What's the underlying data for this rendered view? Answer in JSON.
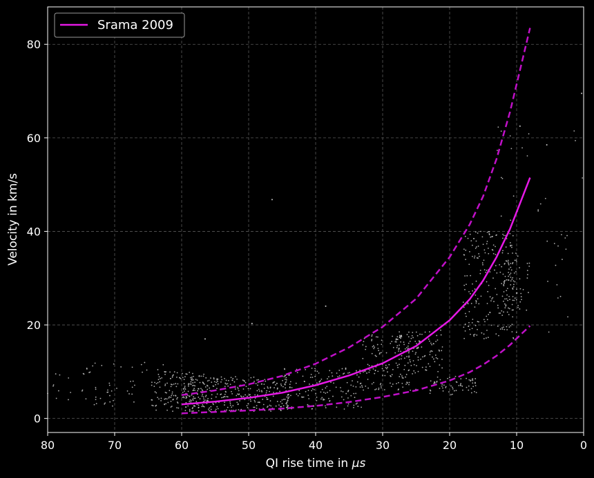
{
  "chart_data": {
    "type": "scatter",
    "title": "",
    "xlabel_prefix": "QI rise time in ",
    "xlabel_unit": "μs",
    "ylabel": "Velocity in km/s",
    "xlim": [
      80,
      0
    ],
    "ylim": [
      -3,
      88
    ],
    "x_inverted": true,
    "xticks": [
      80,
      70,
      60,
      50,
      40,
      30,
      20,
      10,
      0
    ],
    "yticks": [
      0,
      20,
      40,
      60,
      80
    ],
    "grid": true,
    "legend": {
      "position": "top-left",
      "entries": [
        {
          "label": "Srama 2009",
          "color": "#e619e6",
          "style": "solid"
        }
      ]
    },
    "series": [
      {
        "name": "Srama 2009",
        "type": "line",
        "style": "solid",
        "color": "#e619e6",
        "x": [
          60,
          55,
          50,
          45,
          40,
          35,
          30,
          25,
          20,
          17,
          15,
          13,
          11,
          9.5,
          8
        ],
        "y": [
          3.0,
          3.6,
          4.4,
          5.5,
          7.1,
          9.2,
          11.8,
          15.5,
          21.0,
          25.5,
          29.5,
          34.5,
          40.5,
          46.0,
          51.5
        ]
      },
      {
        "type": "line",
        "style": "dashed",
        "color": "#c010c8",
        "x": [
          60,
          55,
          50,
          45,
          40,
          35,
          30,
          25,
          20,
          17,
          15,
          13,
          11,
          9.5,
          8
        ],
        "y": [
          5.0,
          6.0,
          7.3,
          9.1,
          11.7,
          15.2,
          19.6,
          25.6,
          34.5,
          41.5,
          47.5,
          55.5,
          65.5,
          74.5,
          83.5
        ]
      },
      {
        "type": "line",
        "style": "dashed",
        "color": "#c010c8",
        "x": [
          60,
          55,
          50,
          45,
          40,
          35,
          30,
          25,
          20,
          17,
          15,
          13,
          11,
          9.5,
          8
        ],
        "y": [
          1.1,
          1.4,
          1.7,
          2.1,
          2.7,
          3.5,
          4.6,
          6.0,
          8.1,
          9.9,
          11.5,
          13.4,
          15.7,
          17.8,
          19.8
        ]
      }
    ],
    "scatter_color": "#cccccc",
    "scatter_clusters": [
      {
        "x": [
          56,
          64
        ],
        "y": [
          1.5,
          10
        ],
        "n": 120
      },
      {
        "x": [
          44,
          60
        ],
        "y": [
          1.5,
          9
        ],
        "n": 320
      },
      {
        "x": [
          33,
          45
        ],
        "y": [
          2,
          11
        ],
        "n": 170
      },
      {
        "x": [
          62,
          75
        ],
        "y": [
          2.5,
          12
        ],
        "n": 70
      },
      {
        "x": [
          74,
          80
        ],
        "y": [
          4,
          12
        ],
        "n": 10
      },
      {
        "x": [
          25,
          33
        ],
        "y": [
          6,
          18
        ],
        "n": 140
      },
      {
        "x": [
          21,
          28
        ],
        "y": [
          10,
          19
        ],
        "n": 100
      },
      {
        "x": [
          16,
          23
        ],
        "y": [
          5,
          9
        ],
        "n": 60
      },
      {
        "x": [
          10,
          18
        ],
        "y": [
          17,
          40
        ],
        "n": 230
      },
      {
        "x": [
          8,
          12
        ],
        "y": [
          22,
          35
        ],
        "n": 60
      },
      {
        "x": [
          8,
          13
        ],
        "y": [
          40,
          63
        ],
        "n": 14
      },
      {
        "x": [
          2,
          7
        ],
        "y": [
          18,
          47
        ],
        "n": 16
      },
      {
        "x": [
          0,
          6
        ],
        "y": [
          5,
          70
        ],
        "n": 6
      }
    ],
    "scatter_outliers": [
      {
        "x": 46.5,
        "y": 46.8
      },
      {
        "x": 49.5,
        "y": 20.3
      },
      {
        "x": 38.5,
        "y": 24.0
      },
      {
        "x": 56.5,
        "y": 17.0
      },
      {
        "x": 0.3,
        "y": 69.5
      },
      {
        "x": 9.5,
        "y": 62.5
      },
      {
        "x": 5.5,
        "y": 58.5
      }
    ]
  }
}
